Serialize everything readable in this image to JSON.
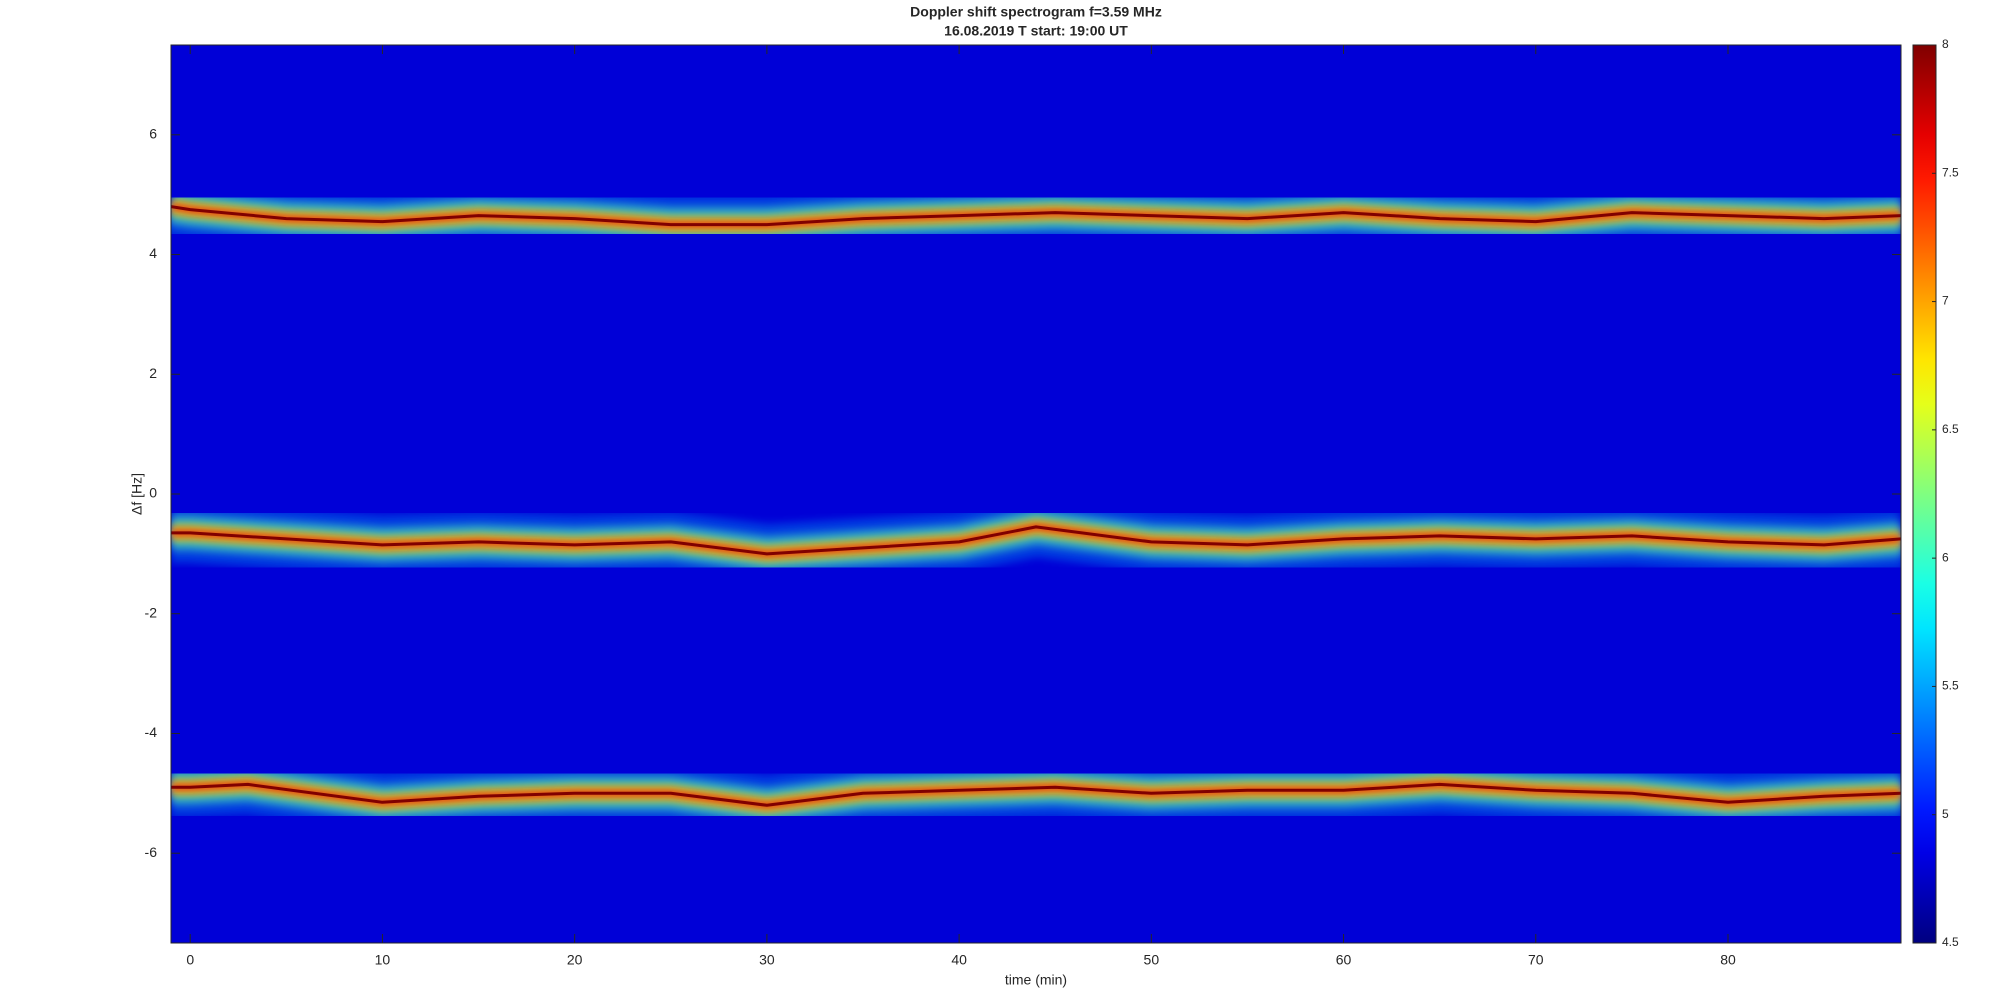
{
  "chart_data": {
    "type": "spectrogram",
    "title": "Doppler shift spectrogram f=3.59 MHz",
    "subtitle": "16.08.2019    T start: 19:00 UT",
    "x_label": "time (min)",
    "y_label": "Δf [Hz]",
    "xlim": [
      -1,
      89
    ],
    "xticks": [
      0,
      10,
      20,
      30,
      40,
      50,
      60,
      70,
      80
    ],
    "ylim": [
      -7.5,
      7.5
    ],
    "yticks": [
      -6,
      -4,
      -2,
      0,
      2,
      4,
      6
    ],
    "clim": [
      4.5,
      8
    ],
    "cticks": [
      4.5,
      5,
      5.5,
      6,
      6.5,
      7,
      7.5,
      8
    ],
    "colormap": "jet",
    "background_level": 4.8,
    "traces": [
      {
        "level": 8,
        "x": [
          -1,
          0,
          5,
          10,
          15,
          20,
          25,
          30,
          35,
          40,
          45,
          50,
          55,
          60,
          65,
          70,
          75,
          80,
          85,
          89
        ],
        "y": [
          4.8,
          4.75,
          4.6,
          4.55,
          4.65,
          4.6,
          4.5,
          4.5,
          4.6,
          4.65,
          4.7,
          4.65,
          4.6,
          4.7,
          4.6,
          4.55,
          4.7,
          4.65,
          4.6,
          4.65
        ]
      },
      {
        "level": 8,
        "x": [
          -1,
          0,
          5,
          10,
          15,
          20,
          25,
          30,
          35,
          40,
          44,
          50,
          55,
          60,
          65,
          70,
          75,
          80,
          85,
          89
        ],
        "y": [
          -0.65,
          -0.65,
          -0.75,
          -0.85,
          -0.8,
          -0.85,
          -0.8,
          -1.0,
          -0.9,
          -0.8,
          -0.55,
          -0.8,
          -0.85,
          -0.75,
          -0.7,
          -0.75,
          -0.7,
          -0.8,
          -0.85,
          -0.75
        ]
      },
      {
        "level": 8,
        "x": [
          -1,
          0,
          3,
          10,
          15,
          20,
          25,
          30,
          35,
          40,
          45,
          50,
          55,
          60,
          65,
          70,
          75,
          80,
          85,
          89
        ],
        "y": [
          -4.9,
          -4.9,
          -4.85,
          -5.15,
          -5.05,
          -5.0,
          -5.0,
          -5.2,
          -5.0,
          -4.95,
          -4.9,
          -5.0,
          -4.95,
          -4.95,
          -4.85,
          -4.95,
          -5.0,
          -5.15,
          -5.05,
          -5.0
        ]
      }
    ]
  }
}
